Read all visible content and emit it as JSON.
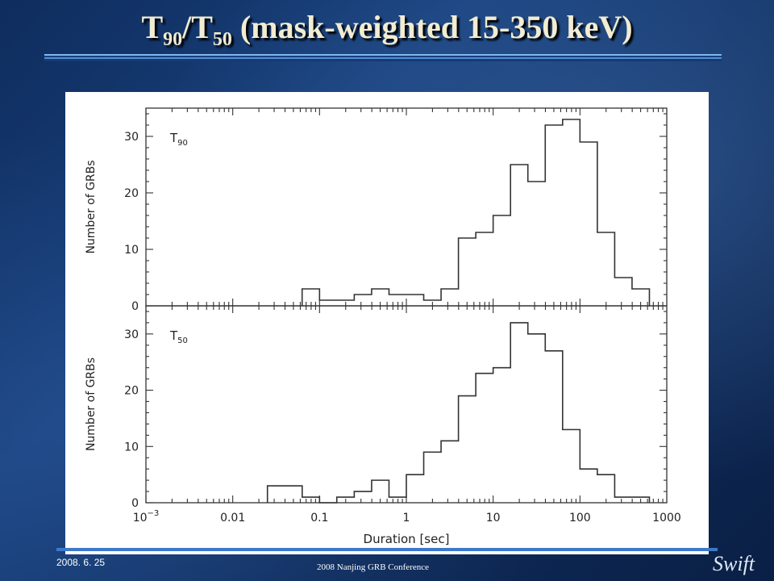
{
  "slide": {
    "title_main": "T",
    "title_sub1": "90",
    "title_mid": "/T",
    "title_sub2": "50",
    "title_rest": " (mask-weighted 15-350 keV)",
    "footer_date": "2008. 6. 25",
    "footer_conference": "2008 Nanjing GRB Conference",
    "logo_text": "Swift",
    "colors": {
      "background": "#133a72",
      "title": "#f1ecd2",
      "rule": "#4f8fd8",
      "plot_line": "#333333"
    }
  },
  "chart_data": [
    {
      "type": "bar",
      "style": "step-histogram",
      "panel_label": "T",
      "panel_label_sub": "90",
      "ylabel": "Number of GRBs",
      "xscale": "log",
      "xlim": [
        0.001,
        1000
      ],
      "ylim": [
        0,
        35
      ],
      "yticks": [
        0,
        10,
        20,
        30
      ],
      "bin_edges": [
        0.063,
        0.1,
        0.158,
        0.251,
        0.398,
        0.631,
        1.0,
        1.585,
        2.512,
        3.981,
        6.31,
        10.0,
        15.85,
        25.12,
        39.81,
        63.1,
        100.0,
        158.5,
        251.2,
        398.1,
        631.0
      ],
      "counts": [
        3,
        1,
        1,
        2,
        3,
        2,
        2,
        1,
        3,
        12,
        13,
        16,
        25,
        22,
        32,
        33,
        29,
        13,
        5,
        3
      ]
    },
    {
      "type": "bar",
      "style": "step-histogram",
      "panel_label": "T",
      "panel_label_sub": "50",
      "ylabel": "Number of GRBs",
      "xlabel": "Duration [sec]",
      "xscale": "log",
      "xlim": [
        0.001,
        1000
      ],
      "ylim": [
        0,
        35
      ],
      "yticks": [
        0,
        10,
        20,
        30
      ],
      "xtick_labels": [
        "10",
        "0.01",
        "0.1",
        "1",
        "10",
        "100",
        "1000"
      ],
      "xtick_first_exponent": "−3",
      "bin_edges": [
        0.0251,
        0.0631,
        0.1,
        0.158,
        0.251,
        0.398,
        0.631,
        1.0,
        1.585,
        2.512,
        3.981,
        6.31,
        10.0,
        15.85,
        25.12,
        39.81,
        63.1,
        100.0,
        158.5,
        251.2,
        398.1,
        631.0
      ],
      "counts": [
        3,
        1,
        0,
        1,
        2,
        4,
        1,
        5,
        9,
        11,
        19,
        23,
        24,
        32,
        30,
        27,
        13,
        6,
        5,
        1,
        1
      ]
    }
  ]
}
